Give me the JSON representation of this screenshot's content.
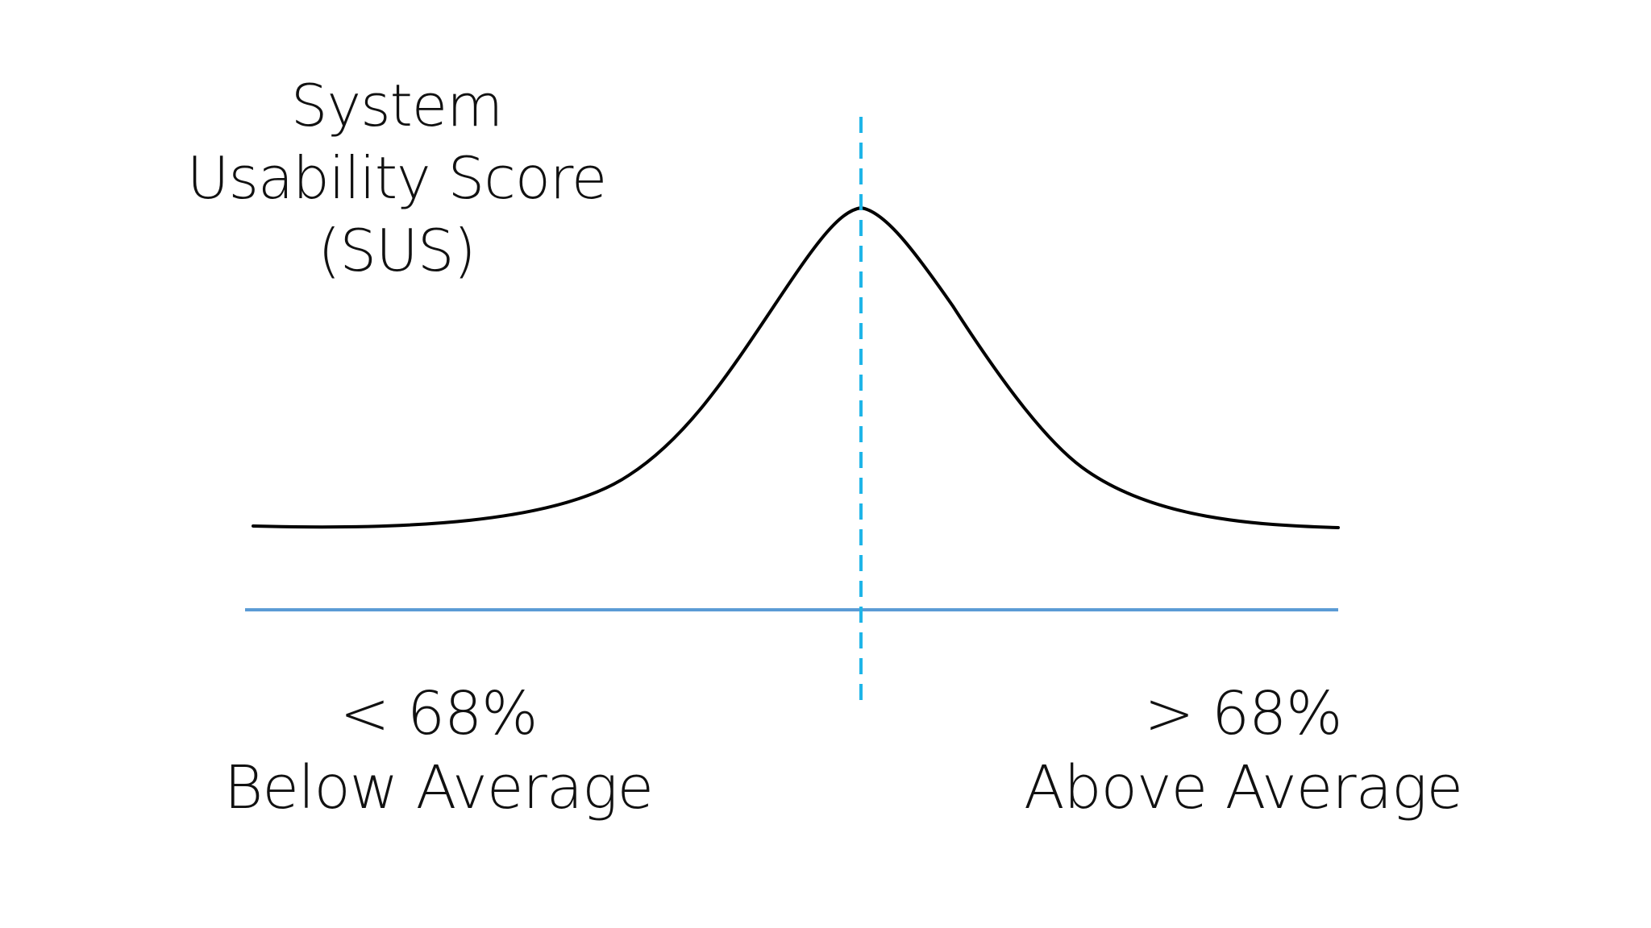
{
  "title": {
    "line1": "System",
    "line2": "Usability Score",
    "line3": "(SUS)"
  },
  "left_label": {
    "value": "< 68%",
    "text": "Below Average"
  },
  "right_label": {
    "value": "> 68%",
    "text": "Above Average"
  },
  "colors": {
    "curve": "#000000",
    "baseline": "#5b9bd5",
    "average_line": "#1fb5e8"
  }
}
